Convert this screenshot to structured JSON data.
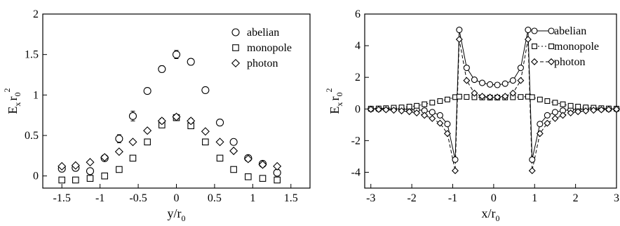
{
  "chart_data": [
    {
      "type": "scatter",
      "xlabel": "y/r",
      "xlabel_sub": "0",
      "ylabel": "E",
      "ylabel_sub": "x",
      "ylabel_r": "r",
      "ylabel_sub2": "0",
      "ylabel_sup": "2",
      "xlim": [
        -1.75,
        1.75
      ],
      "ylim": [
        -0.15,
        2.0
      ],
      "xticks": [
        -1.5,
        -1.0,
        -0.5,
        0.0,
        0.5,
        1.0,
        1.5
      ],
      "xtick_labels": [
        "-1.5",
        "-1",
        "-0.5",
        "0",
        "0.5",
        "1",
        "1.5"
      ],
      "yticks": [
        0,
        0.5,
        1.0,
        1.5,
        2.0
      ],
      "ytick_labels": [
        "0",
        "0.5",
        "1",
        "1.5",
        "2"
      ],
      "legend_position": "top-right",
      "series": [
        {
          "name": "abelian",
          "marker": "circle",
          "x": [
            -1.5,
            -1.32,
            -1.13,
            -0.94,
            -0.75,
            -0.57,
            -0.38,
            -0.19,
            0.0,
            0.19,
            0.38,
            0.57,
            0.75,
            0.94,
            1.13,
            1.32
          ],
          "y": [
            0.09,
            0.1,
            0.06,
            0.22,
            0.46,
            0.74,
            1.05,
            1.32,
            1.5,
            1.41,
            1.06,
            0.66,
            0.42,
            0.22,
            0.15,
            0.04
          ],
          "err": [
            0.04,
            0.03,
            0.03,
            0.03,
            0.05,
            0.06,
            0.03,
            0.04,
            0.05,
            0.04,
            0.02,
            0.04,
            0.02,
            0.02,
            0.03,
            0.04
          ]
        },
        {
          "name": "monopole",
          "marker": "square",
          "x": [
            -1.5,
            -1.32,
            -1.13,
            -0.94,
            -0.75,
            -0.57,
            -0.38,
            -0.19,
            0.0,
            0.19,
            0.38,
            0.57,
            0.75,
            0.94,
            1.13,
            1.32
          ],
          "y": [
            -0.05,
            -0.05,
            -0.03,
            0.0,
            0.08,
            0.22,
            0.42,
            0.63,
            0.72,
            0.62,
            0.42,
            0.22,
            0.08,
            -0.01,
            -0.03,
            -0.05
          ],
          "err": [
            0.02,
            0.02,
            0.02,
            0.02,
            0.02,
            0.02,
            0.02,
            0.03,
            0.03,
            0.03,
            0.02,
            0.02,
            0.02,
            0.02,
            0.02,
            0.02
          ]
        },
        {
          "name": "photon",
          "marker": "diamond",
          "x": [
            -1.5,
            -1.32,
            -1.13,
            -0.94,
            -0.75,
            -0.57,
            -0.38,
            -0.19,
            0.0,
            0.19,
            0.38,
            0.57,
            0.75,
            0.94,
            1.13,
            1.32
          ],
          "y": [
            0.12,
            0.13,
            0.17,
            0.23,
            0.3,
            0.42,
            0.56,
            0.68,
            0.73,
            0.68,
            0.55,
            0.42,
            0.31,
            0.21,
            0.14,
            0.12
          ],
          "err": [
            0.02,
            0.02,
            0.02,
            0.02,
            0.02,
            0.02,
            0.02,
            0.03,
            0.03,
            0.03,
            0.02,
            0.02,
            0.02,
            0.02,
            0.02,
            0.02
          ]
        }
      ]
    },
    {
      "type": "line",
      "xlabel": "x/r",
      "xlabel_sub": "0",
      "ylabel": "E",
      "ylabel_sub": "x",
      "ylabel_r": "r",
      "ylabel_sub2": "0",
      "ylabel_sup": "2",
      "xlim": [
        -3.15,
        3.0
      ],
      "ylim": [
        -5.0,
        6.0
      ],
      "xticks": [
        -3,
        -2,
        -1,
        0,
        1,
        2,
        3
      ],
      "xtick_labels": [
        "-3",
        "-2",
        "-1",
        "0",
        "1",
        "2",
        "3"
      ],
      "yticks": [
        -4,
        -2,
        0,
        2,
        4,
        6
      ],
      "ytick_labels": [
        "-4",
        "-2",
        "0",
        "2",
        "4",
        "6"
      ],
      "legend_position": "top-right",
      "series": [
        {
          "name": "abelian",
          "marker": "circle",
          "line": "solid",
          "x": [
            -3.0,
            -2.81,
            -2.63,
            -2.44,
            -2.25,
            -2.06,
            -1.88,
            -1.69,
            -1.5,
            -1.31,
            -1.13,
            -0.94,
            -0.84,
            -0.66,
            -0.47,
            -0.28,
            -0.09,
            0.09,
            0.28,
            0.47,
            0.66,
            0.84,
            0.94,
            1.13,
            1.31,
            1.5,
            1.69,
            1.88,
            2.06,
            2.25,
            2.44,
            2.63,
            2.81,
            3.0
          ],
          "y": [
            0.0,
            0.0,
            0.0,
            0.0,
            0.0,
            -0.02,
            -0.05,
            -0.1,
            -0.2,
            -0.4,
            -0.95,
            -3.2,
            5.0,
            2.6,
            1.85,
            1.65,
            1.55,
            1.52,
            1.6,
            1.8,
            2.6,
            5.0,
            -3.2,
            -0.95,
            -0.4,
            -0.2,
            -0.1,
            -0.05,
            -0.02,
            0.0,
            0.0,
            0.0,
            0.0,
            0.0
          ]
        },
        {
          "name": "monopole",
          "marker": "square",
          "line": "dotted",
          "x": [
            -3.0,
            -2.81,
            -2.63,
            -2.44,
            -2.25,
            -2.06,
            -1.88,
            -1.69,
            -1.5,
            -1.31,
            -1.13,
            -0.94,
            -0.84,
            -0.66,
            -0.47,
            -0.28,
            -0.09,
            0.09,
            0.28,
            0.47,
            0.66,
            0.84,
            0.94,
            1.13,
            1.31,
            1.5,
            1.69,
            1.88,
            2.06,
            2.25,
            2.44,
            2.63,
            2.81,
            3.0
          ],
          "y": [
            0.02,
            0.03,
            0.05,
            0.08,
            0.1,
            0.15,
            0.2,
            0.3,
            0.4,
            0.5,
            0.6,
            0.75,
            0.78,
            0.76,
            0.74,
            0.73,
            0.72,
            0.72,
            0.73,
            0.74,
            0.76,
            0.78,
            0.75,
            0.6,
            0.5,
            0.4,
            0.3,
            0.2,
            0.15,
            0.1,
            0.08,
            0.05,
            0.03,
            0.02
          ]
        },
        {
          "name": "photon",
          "marker": "diamond",
          "line": "dashed",
          "x": [
            -3.0,
            -2.81,
            -2.63,
            -2.44,
            -2.25,
            -2.06,
            -1.88,
            -1.69,
            -1.5,
            -1.31,
            -1.13,
            -0.94,
            -0.84,
            -0.66,
            -0.47,
            -0.28,
            -0.09,
            0.09,
            0.28,
            0.47,
            0.66,
            0.84,
            0.94,
            1.13,
            1.31,
            1.5,
            1.69,
            1.88,
            2.06,
            2.25,
            2.44,
            2.63,
            2.81,
            3.0
          ],
          "y": [
            -0.02,
            -0.03,
            -0.05,
            -0.08,
            -0.12,
            -0.17,
            -0.25,
            -0.4,
            -0.6,
            -0.9,
            -1.55,
            -3.9,
            4.4,
            1.8,
            1.0,
            0.8,
            0.75,
            0.75,
            0.8,
            1.0,
            1.8,
            4.4,
            -3.9,
            -1.55,
            -0.9,
            -0.6,
            -0.4,
            -0.25,
            -0.17,
            -0.12,
            -0.08,
            -0.05,
            -0.03,
            -0.02
          ]
        }
      ]
    }
  ]
}
